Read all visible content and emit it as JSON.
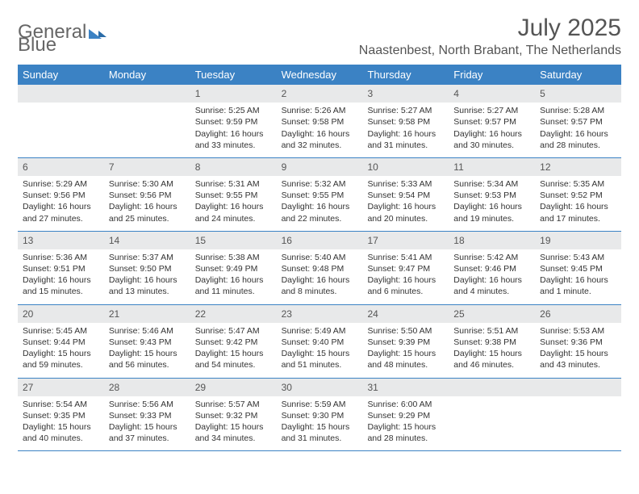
{
  "logo": {
    "text1": "General",
    "text2": "Blue"
  },
  "title": "July 2025",
  "location": "Naastenbest, North Brabant, The Netherlands",
  "colors": {
    "header_bg": "#3b82c4",
    "daynum_bg": "#e8e9ea",
    "text": "#333333",
    "title_text": "#555555"
  },
  "typography": {
    "title_fontsize": 30,
    "location_fontsize": 16,
    "dow_fontsize": 13,
    "daynum_fontsize": 12,
    "body_fontsize": 10.5
  },
  "layout": {
    "columns": 7,
    "rows": 5,
    "first_day_column_index": 2
  },
  "dow": [
    "Sunday",
    "Monday",
    "Tuesday",
    "Wednesday",
    "Thursday",
    "Friday",
    "Saturday"
  ],
  "days": [
    {
      "n": "1",
      "sunrise": "Sunrise: 5:25 AM",
      "sunset": "Sunset: 9:59 PM",
      "day1": "Daylight: 16 hours",
      "day2": "and 33 minutes."
    },
    {
      "n": "2",
      "sunrise": "Sunrise: 5:26 AM",
      "sunset": "Sunset: 9:58 PM",
      "day1": "Daylight: 16 hours",
      "day2": "and 32 minutes."
    },
    {
      "n": "3",
      "sunrise": "Sunrise: 5:27 AM",
      "sunset": "Sunset: 9:58 PM",
      "day1": "Daylight: 16 hours",
      "day2": "and 31 minutes."
    },
    {
      "n": "4",
      "sunrise": "Sunrise: 5:27 AM",
      "sunset": "Sunset: 9:57 PM",
      "day1": "Daylight: 16 hours",
      "day2": "and 30 minutes."
    },
    {
      "n": "5",
      "sunrise": "Sunrise: 5:28 AM",
      "sunset": "Sunset: 9:57 PM",
      "day1": "Daylight: 16 hours",
      "day2": "and 28 minutes."
    },
    {
      "n": "6",
      "sunrise": "Sunrise: 5:29 AM",
      "sunset": "Sunset: 9:56 PM",
      "day1": "Daylight: 16 hours",
      "day2": "and 27 minutes."
    },
    {
      "n": "7",
      "sunrise": "Sunrise: 5:30 AM",
      "sunset": "Sunset: 9:56 PM",
      "day1": "Daylight: 16 hours",
      "day2": "and 25 minutes."
    },
    {
      "n": "8",
      "sunrise": "Sunrise: 5:31 AM",
      "sunset": "Sunset: 9:55 PM",
      "day1": "Daylight: 16 hours",
      "day2": "and 24 minutes."
    },
    {
      "n": "9",
      "sunrise": "Sunrise: 5:32 AM",
      "sunset": "Sunset: 9:55 PM",
      "day1": "Daylight: 16 hours",
      "day2": "and 22 minutes."
    },
    {
      "n": "10",
      "sunrise": "Sunrise: 5:33 AM",
      "sunset": "Sunset: 9:54 PM",
      "day1": "Daylight: 16 hours",
      "day2": "and 20 minutes."
    },
    {
      "n": "11",
      "sunrise": "Sunrise: 5:34 AM",
      "sunset": "Sunset: 9:53 PM",
      "day1": "Daylight: 16 hours",
      "day2": "and 19 minutes."
    },
    {
      "n": "12",
      "sunrise": "Sunrise: 5:35 AM",
      "sunset": "Sunset: 9:52 PM",
      "day1": "Daylight: 16 hours",
      "day2": "and 17 minutes."
    },
    {
      "n": "13",
      "sunrise": "Sunrise: 5:36 AM",
      "sunset": "Sunset: 9:51 PM",
      "day1": "Daylight: 16 hours",
      "day2": "and 15 minutes."
    },
    {
      "n": "14",
      "sunrise": "Sunrise: 5:37 AM",
      "sunset": "Sunset: 9:50 PM",
      "day1": "Daylight: 16 hours",
      "day2": "and 13 minutes."
    },
    {
      "n": "15",
      "sunrise": "Sunrise: 5:38 AM",
      "sunset": "Sunset: 9:49 PM",
      "day1": "Daylight: 16 hours",
      "day2": "and 11 minutes."
    },
    {
      "n": "16",
      "sunrise": "Sunrise: 5:40 AM",
      "sunset": "Sunset: 9:48 PM",
      "day1": "Daylight: 16 hours",
      "day2": "and 8 minutes."
    },
    {
      "n": "17",
      "sunrise": "Sunrise: 5:41 AM",
      "sunset": "Sunset: 9:47 PM",
      "day1": "Daylight: 16 hours",
      "day2": "and 6 minutes."
    },
    {
      "n": "18",
      "sunrise": "Sunrise: 5:42 AM",
      "sunset": "Sunset: 9:46 PM",
      "day1": "Daylight: 16 hours",
      "day2": "and 4 minutes."
    },
    {
      "n": "19",
      "sunrise": "Sunrise: 5:43 AM",
      "sunset": "Sunset: 9:45 PM",
      "day1": "Daylight: 16 hours",
      "day2": "and 1 minute."
    },
    {
      "n": "20",
      "sunrise": "Sunrise: 5:45 AM",
      "sunset": "Sunset: 9:44 PM",
      "day1": "Daylight: 15 hours",
      "day2": "and 59 minutes."
    },
    {
      "n": "21",
      "sunrise": "Sunrise: 5:46 AM",
      "sunset": "Sunset: 9:43 PM",
      "day1": "Daylight: 15 hours",
      "day2": "and 56 minutes."
    },
    {
      "n": "22",
      "sunrise": "Sunrise: 5:47 AM",
      "sunset": "Sunset: 9:42 PM",
      "day1": "Daylight: 15 hours",
      "day2": "and 54 minutes."
    },
    {
      "n": "23",
      "sunrise": "Sunrise: 5:49 AM",
      "sunset": "Sunset: 9:40 PM",
      "day1": "Daylight: 15 hours",
      "day2": "and 51 minutes."
    },
    {
      "n": "24",
      "sunrise": "Sunrise: 5:50 AM",
      "sunset": "Sunset: 9:39 PM",
      "day1": "Daylight: 15 hours",
      "day2": "and 48 minutes."
    },
    {
      "n": "25",
      "sunrise": "Sunrise: 5:51 AM",
      "sunset": "Sunset: 9:38 PM",
      "day1": "Daylight: 15 hours",
      "day2": "and 46 minutes."
    },
    {
      "n": "26",
      "sunrise": "Sunrise: 5:53 AM",
      "sunset": "Sunset: 9:36 PM",
      "day1": "Daylight: 15 hours",
      "day2": "and 43 minutes."
    },
    {
      "n": "27",
      "sunrise": "Sunrise: 5:54 AM",
      "sunset": "Sunset: 9:35 PM",
      "day1": "Daylight: 15 hours",
      "day2": "and 40 minutes."
    },
    {
      "n": "28",
      "sunrise": "Sunrise: 5:56 AM",
      "sunset": "Sunset: 9:33 PM",
      "day1": "Daylight: 15 hours",
      "day2": "and 37 minutes."
    },
    {
      "n": "29",
      "sunrise": "Sunrise: 5:57 AM",
      "sunset": "Sunset: 9:32 PM",
      "day1": "Daylight: 15 hours",
      "day2": "and 34 minutes."
    },
    {
      "n": "30",
      "sunrise": "Sunrise: 5:59 AM",
      "sunset": "Sunset: 9:30 PM",
      "day1": "Daylight: 15 hours",
      "day2": "and 31 minutes."
    },
    {
      "n": "31",
      "sunrise": "Sunrise: 6:00 AM",
      "sunset": "Sunset: 9:29 PM",
      "day1": "Daylight: 15 hours",
      "day2": "and 28 minutes."
    }
  ]
}
